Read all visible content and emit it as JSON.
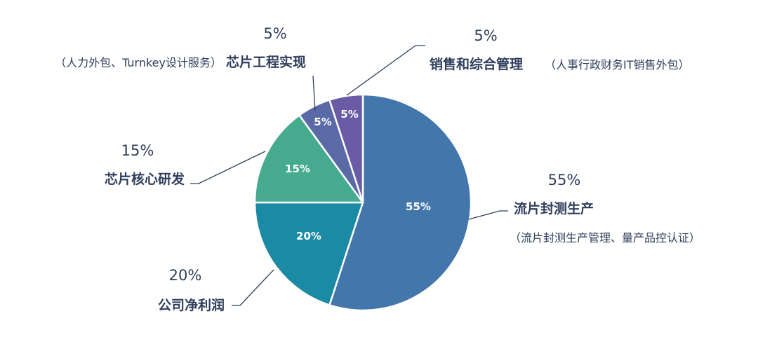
{
  "chart_data": {
    "type": "pie",
    "slices": [
      {
        "value": 55,
        "color": "#4377ab",
        "inner_label": "55%",
        "outer_pct": "55%",
        "name": "流片封测生产",
        "note": "（流片封测生产管理、量产品控认证）"
      },
      {
        "value": 20,
        "color": "#1b8aa4",
        "inner_label": "20%",
        "outer_pct": "20%",
        "name": "公司净利润",
        "note": ""
      },
      {
        "value": 15,
        "color": "#45aa8e",
        "inner_label": "15%",
        "outer_pct": "15%",
        "name": "芯片核心研发",
        "note": ""
      },
      {
        "value": 5,
        "color": "#5a6aa7",
        "inner_label": "5%",
        "outer_pct": "5%",
        "name": "芯片工程实现",
        "note": "（人力外包、Turnkey设计服务）"
      },
      {
        "value": 5,
        "color": "#6a5ba6",
        "inner_label": "5%",
        "outer_pct": "5%",
        "name": "销售和综合管理",
        "note": "（人事行政财务IT销售外包）"
      }
    ],
    "start_angle_deg": 0,
    "direction": "clockwise"
  }
}
